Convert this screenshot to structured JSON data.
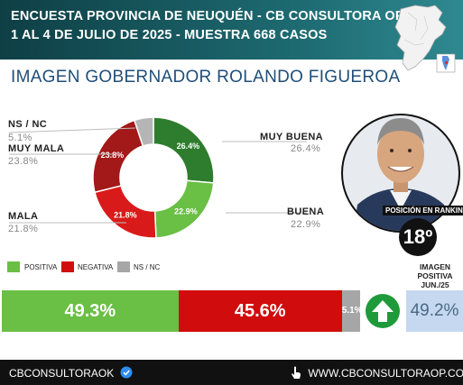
{
  "header": {
    "line1": "ENCUESTA PROVINCIA DE NEUQUÉN - CB CONSULTORA OP",
    "line2": "1 AL 4 DE JULIO DE 2025 - MUESTRA 668 CASOS"
  },
  "subtitle": "IMAGEN GOBERNADOR  ROLANDO FIGUEROA",
  "colors": {
    "muy_buena": "#2e7d2e",
    "buena": "#6abf45",
    "mala": "#d91a1a",
    "muy_mala": "#a31818",
    "ns_nc": "#b5b5b5",
    "positiva": "#6abf45",
    "negativa": "#d10c0c",
    "ns_nc_bar": "#a6a6a6"
  },
  "chart_data": [
    {
      "type": "pie",
      "categories": [
        "MUY BUENA",
        "BUENA",
        "MALA",
        "MUY MALA",
        "NS / NC"
      ],
      "values": [
        26.4,
        22.9,
        21.8,
        23.8,
        5.1
      ],
      "value_labels": [
        "26.4%",
        "22.9%",
        "21.8%",
        "23.8%",
        "5.1%"
      ],
      "donut": true
    },
    {
      "type": "bar",
      "orientation": "horizontal-stacked",
      "categories": [
        "POSITIVA",
        "NEGATIVA",
        "NS / NC"
      ],
      "values": [
        49.3,
        45.6,
        5.1
      ],
      "value_labels": [
        "49.3%",
        "45.6%",
        "5.1%"
      ]
    }
  ],
  "labels": {
    "muy_buena": {
      "name": "MUY BUENA",
      "value": "26.4%"
    },
    "buena": {
      "name": "BUENA",
      "value": "22.9%"
    },
    "mala": {
      "name": "MALA",
      "value": "21.8%"
    },
    "muy_mala": {
      "name": "MUY MALA",
      "value": "23.8%"
    },
    "ns_nc": {
      "name": "NS / NC",
      "value": "5.1%"
    }
  },
  "legend": [
    "POSITIVA",
    "NEGATIVA",
    "NS / NC"
  ],
  "ranking": {
    "label": "POSICIÓN EN RANKING",
    "value": "18º"
  },
  "previous": {
    "title": "IMAGEN POSITIVA JUN./25",
    "value": "49.2%",
    "icon": "up-arrow-icon"
  },
  "footer": {
    "left": "CBCONSULTORAOK",
    "left_icon": "verified-badge-icon",
    "right": "WWW.CBCONSULTORAOP.COM",
    "right_icon": "hand-pointer-icon"
  }
}
